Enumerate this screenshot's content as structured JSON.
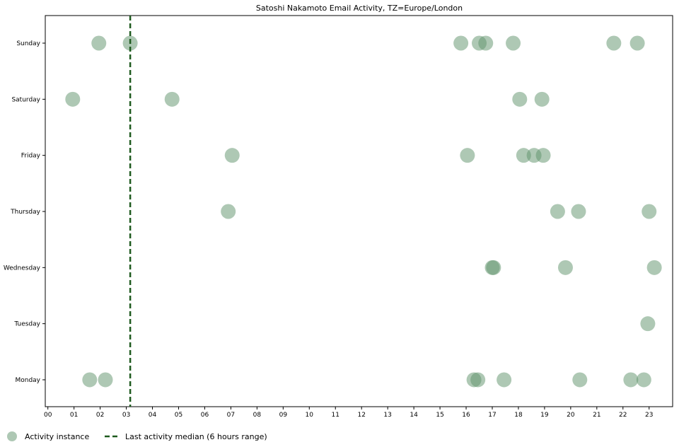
{
  "chart_data": {
    "type": "scatter",
    "title": "Satoshi Nakamoto Email Activity, TZ=Europe/London",
    "xlabel": "",
    "ylabel": "",
    "xlim": [
      -0.1,
      23.9
    ],
    "x_ticks": [
      "00",
      "01",
      "02",
      "03",
      "04",
      "05",
      "06",
      "07",
      "08",
      "09",
      "10",
      "11",
      "12",
      "13",
      "14",
      "15",
      "16",
      "17",
      "18",
      "19",
      "20",
      "21",
      "22",
      "23"
    ],
    "categories": [
      "Monday",
      "Tuesday",
      "Wednesday",
      "Thursday",
      "Friday",
      "Saturday",
      "Sunday"
    ],
    "grid": false,
    "legend_position": "bottom-left",
    "series": [
      {
        "name": "Activity instance",
        "color": "#5e926a",
        "opacity": 0.5,
        "points": [
          {
            "day": "Sunday",
            "hour": 1.95
          },
          {
            "day": "Sunday",
            "hour": 3.15
          },
          {
            "day": "Sunday",
            "hour": 15.8
          },
          {
            "day": "Sunday",
            "hour": 16.5
          },
          {
            "day": "Sunday",
            "hour": 16.75
          },
          {
            "day": "Sunday",
            "hour": 17.8
          },
          {
            "day": "Sunday",
            "hour": 21.65
          },
          {
            "day": "Sunday",
            "hour": 22.55
          },
          {
            "day": "Saturday",
            "hour": 0.95
          },
          {
            "day": "Saturday",
            "hour": 4.75
          },
          {
            "day": "Saturday",
            "hour": 18.05
          },
          {
            "day": "Saturday",
            "hour": 18.9
          },
          {
            "day": "Friday",
            "hour": 7.05
          },
          {
            "day": "Friday",
            "hour": 16.05
          },
          {
            "day": "Friday",
            "hour": 18.2
          },
          {
            "day": "Friday",
            "hour": 18.6
          },
          {
            "day": "Friday",
            "hour": 18.95
          },
          {
            "day": "Thursday",
            "hour": 6.9
          },
          {
            "day": "Thursday",
            "hour": 19.5
          },
          {
            "day": "Thursday",
            "hour": 20.3
          },
          {
            "day": "Thursday",
            "hour": 23.0
          },
          {
            "day": "Wednesday",
            "hour": 17.0
          },
          {
            "day": "Wednesday",
            "hour": 17.05
          },
          {
            "day": "Wednesday",
            "hour": 19.8
          },
          {
            "day": "Wednesday",
            "hour": 23.2
          },
          {
            "day": "Tuesday",
            "hour": 22.95
          },
          {
            "day": "Monday",
            "hour": 1.6
          },
          {
            "day": "Monday",
            "hour": 2.2
          },
          {
            "day": "Monday",
            "hour": 16.3
          },
          {
            "day": "Monday",
            "hour": 16.45
          },
          {
            "day": "Monday",
            "hour": 17.45
          },
          {
            "day": "Monday",
            "hour": 20.35
          },
          {
            "day": "Monday",
            "hour": 22.3
          },
          {
            "day": "Monday",
            "hour": 22.8
          }
        ]
      }
    ],
    "reference_line": {
      "name": "Last activity median (6 hours range)",
      "x": 3.15,
      "style": "dashed",
      "color": "#1e5a1e"
    }
  }
}
